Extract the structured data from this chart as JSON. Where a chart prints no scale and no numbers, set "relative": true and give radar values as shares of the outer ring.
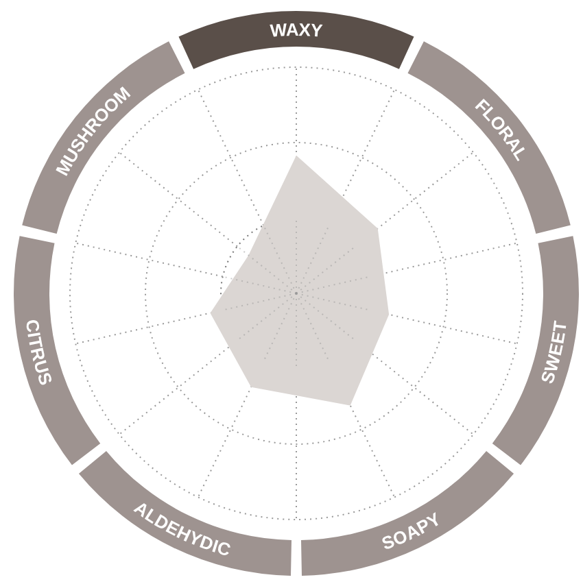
{
  "chart_data": {
    "type": "radar",
    "relative": true,
    "grid": true,
    "categories": [
      "WAXY",
      "FLORAL",
      "SWEET",
      "SOAPY",
      "ALDEHYDIC",
      "CITRUS",
      "MUSHROOM"
    ],
    "series": [
      {
        "color": "#dbd6d3",
        "values": [
          0.61,
          0.46,
          0.42,
          0.55,
          0.46,
          0.39,
          0.27
        ]
      }
    ]
  }
}
